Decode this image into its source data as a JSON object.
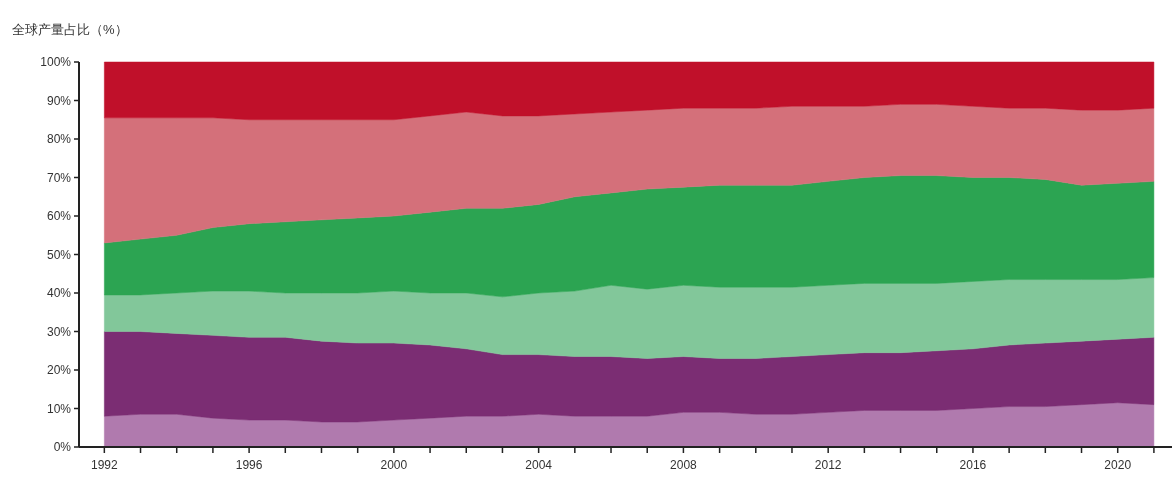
{
  "chart_data": {
    "type": "area",
    "title": "全球产量占比（%）",
    "stacked": true,
    "x": [
      1992,
      1993,
      1994,
      1995,
      1996,
      1997,
      1998,
      1999,
      2000,
      2001,
      2002,
      2003,
      2004,
      2005,
      2006,
      2007,
      2008,
      2009,
      2010,
      2011,
      2012,
      2013,
      2014,
      2015,
      2016,
      2017,
      2018,
      2019,
      2020,
      2021
    ],
    "xlim": [
      1991.3,
      2021.5
    ],
    "xticks": [
      {
        "value": 1992,
        "label": "1992"
      },
      {
        "value": 1993,
        "label": null
      },
      {
        "value": 1994,
        "label": null
      },
      {
        "value": 1995,
        "label": null
      },
      {
        "value": 1996,
        "label": "1996"
      },
      {
        "value": 1997,
        "label": null
      },
      {
        "value": 1998,
        "label": null
      },
      {
        "value": 1999,
        "label": null
      },
      {
        "value": 2000,
        "label": "2000"
      },
      {
        "value": 2001,
        "label": null
      },
      {
        "value": 2002,
        "label": null
      },
      {
        "value": 2003,
        "label": null
      },
      {
        "value": 2004,
        "label": "2004"
      },
      {
        "value": 2005,
        "label": null
      },
      {
        "value": 2006,
        "label": null
      },
      {
        "value": 2007,
        "label": null
      },
      {
        "value": 2008,
        "label": "2008"
      },
      {
        "value": 2009,
        "label": null
      },
      {
        "value": 2010,
        "label": null
      },
      {
        "value": 2011,
        "label": null
      },
      {
        "value": 2012,
        "label": "2012"
      },
      {
        "value": 2013,
        "label": null
      },
      {
        "value": 2014,
        "label": null
      },
      {
        "value": 2015,
        "label": null
      },
      {
        "value": 2016,
        "label": "2016"
      },
      {
        "value": 2017,
        "label": null
      },
      {
        "value": 2018,
        "label": null
      },
      {
        "value": 2019,
        "label": null
      },
      {
        "value": 2020,
        "label": "2020"
      },
      {
        "value": 2021,
        "label": null
      }
    ],
    "ylim": [
      0,
      100
    ],
    "yticks": [
      {
        "value": 0,
        "label": "0%"
      },
      {
        "value": 10,
        "label": "10%"
      },
      {
        "value": 20,
        "label": "20%"
      },
      {
        "value": 30,
        "label": "30%"
      },
      {
        "value": 40,
        "label": "40%"
      },
      {
        "value": 50,
        "label": "50%"
      },
      {
        "value": 60,
        "label": "60%"
      },
      {
        "value": 70,
        "label": "70%"
      },
      {
        "value": 80,
        "label": "80%"
      },
      {
        "value": 90,
        "label": "90%"
      },
      {
        "value": 100,
        "label": "100%"
      }
    ],
    "series": [
      {
        "color": "#b07aae",
        "values": [
          8,
          8.5,
          8.5,
          7.5,
          7,
          7,
          6.5,
          6.5,
          7,
          7.5,
          8,
          8,
          8.5,
          8,
          8,
          8,
          9,
          9,
          8.5,
          8.5,
          9,
          9.5,
          9.5,
          9.5,
          10,
          10.5,
          10.5,
          11,
          11.5,
          11
        ]
      },
      {
        "color": "#7b2d73",
        "values": [
          22,
          21.5,
          21,
          21.5,
          21.5,
          21.5,
          21,
          20.5,
          20,
          19,
          17.5,
          16,
          15.5,
          15.5,
          15.5,
          15,
          14.5,
          14,
          14.5,
          15,
          15,
          15,
          15,
          15.5,
          15.5,
          16,
          16.5,
          16.5,
          16.5,
          17.5
        ]
      },
      {
        "color": "#82c79a",
        "values": [
          9.5,
          9.5,
          10.5,
          11.5,
          12,
          11.5,
          12.5,
          13,
          13.5,
          13.5,
          14.5,
          15,
          16,
          17,
          18.5,
          18,
          18.5,
          18.5,
          18.5,
          18,
          18,
          18,
          18,
          17.5,
          17.5,
          17,
          16.5,
          16,
          15.5,
          15.5
        ]
      },
      {
        "color": "#2ca452",
        "values": [
          13.5,
          14.5,
          15,
          16.5,
          17.5,
          18.5,
          19,
          19.5,
          19.5,
          21,
          22,
          23,
          23,
          24.5,
          24,
          26,
          25.5,
          26.5,
          26.5,
          26.5,
          27,
          27.5,
          28,
          28,
          27,
          26.5,
          26,
          24.5,
          25,
          25
        ]
      },
      {
        "color": "#d4707a",
        "values": [
          32.5,
          31.5,
          30.5,
          28.5,
          27,
          26.5,
          26,
          25.5,
          25,
          25,
          25,
          24,
          23,
          21.5,
          21,
          20.5,
          20.5,
          20,
          20,
          20.5,
          19.5,
          18.5,
          18.5,
          18.5,
          18.5,
          18,
          18.5,
          19.5,
          19,
          19
        ]
      },
      {
        "color": "#c0102a",
        "values": [
          14.5,
          14.5,
          14.5,
          14.5,
          15,
          15,
          15,
          15,
          15,
          14,
          13,
          14,
          14,
          13.5,
          13,
          12.5,
          12,
          12,
          12,
          11.5,
          11.5,
          11.5,
          11,
          11,
          11.5,
          12,
          12,
          12.5,
          12.5,
          12
        ]
      }
    ]
  }
}
